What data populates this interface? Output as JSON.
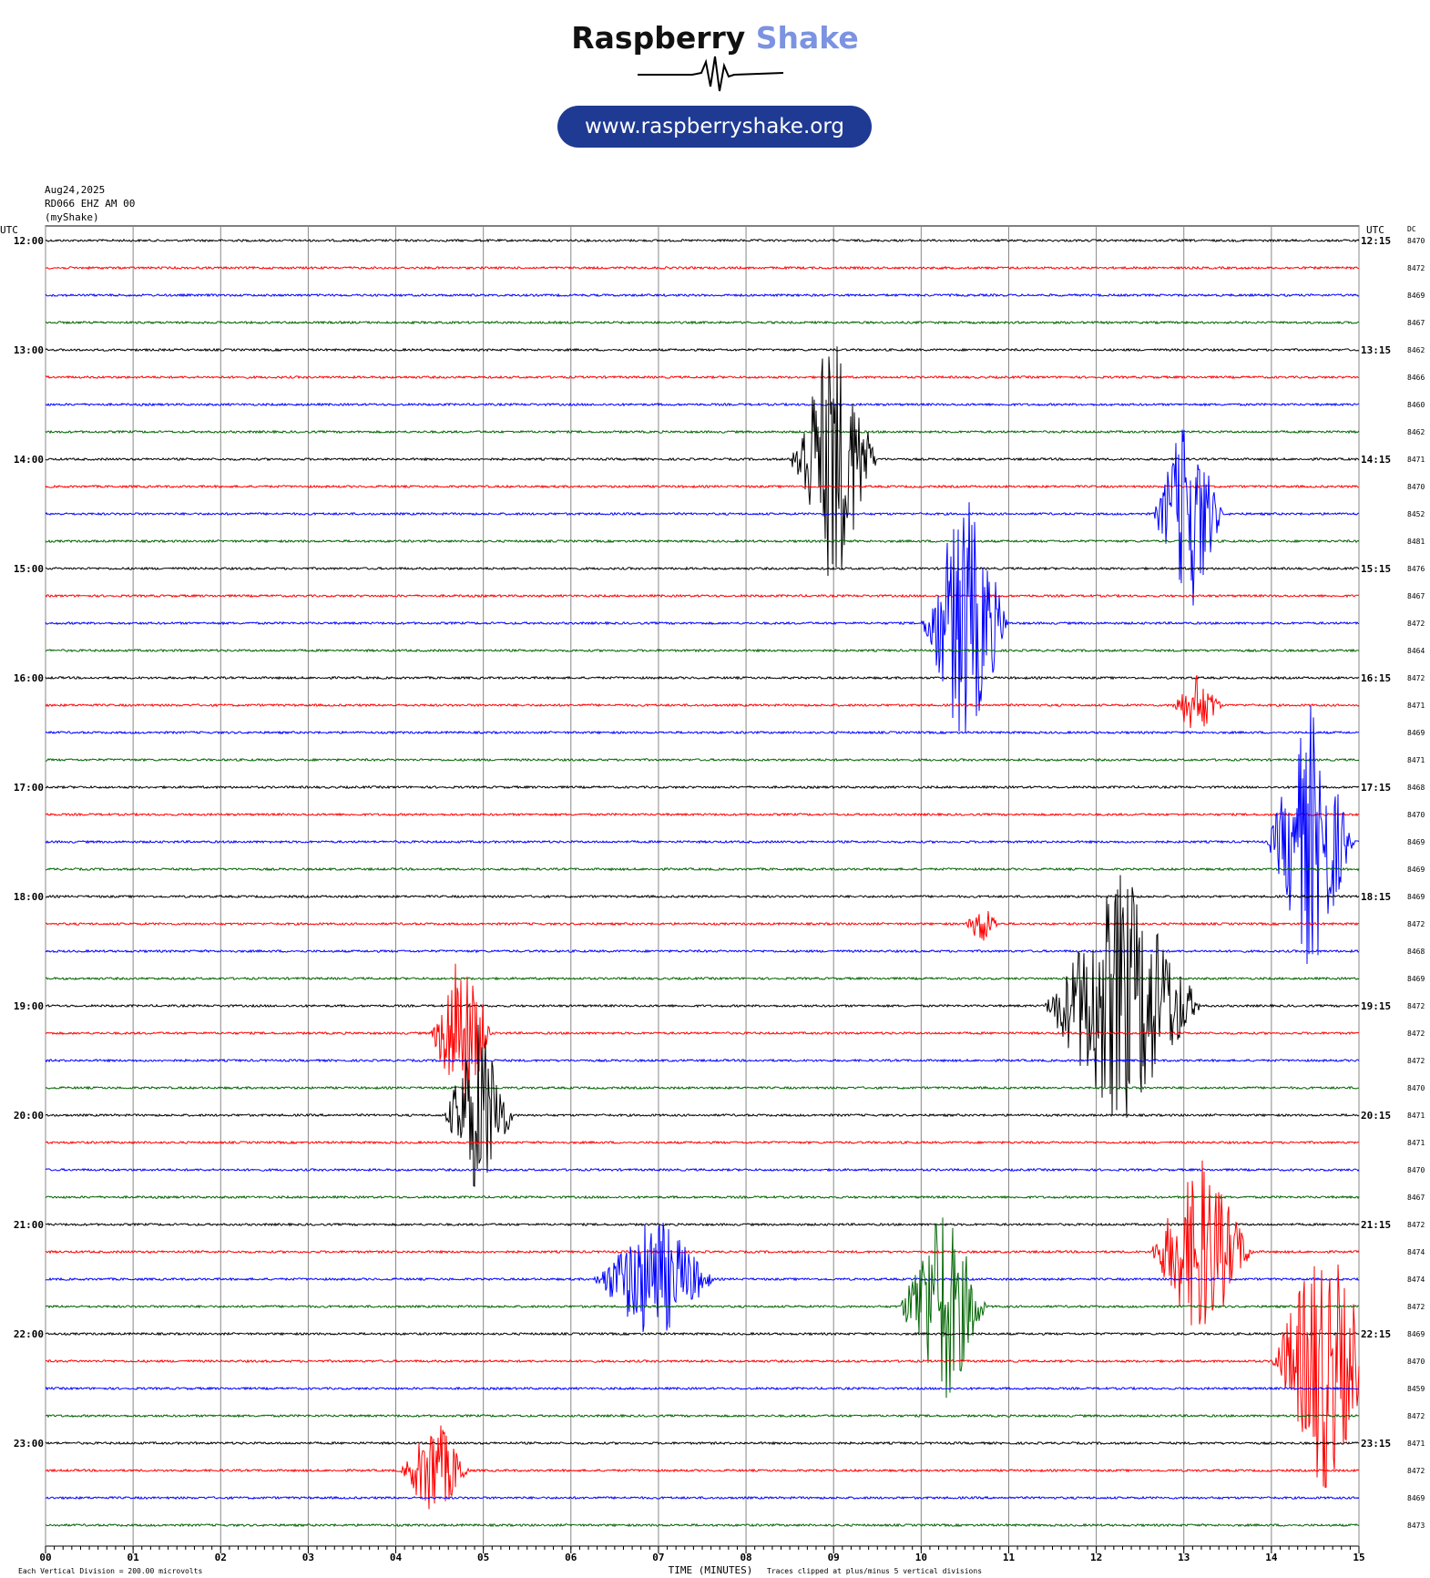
{
  "header": {
    "brand_part1": "Raspberry",
    "brand_part2": "Shake",
    "url": "www.raspberryshake.org",
    "date": "Aug24,2025",
    "station": "RD066 EHZ AM 00",
    "source": "(myShake)"
  },
  "footer": {
    "left_note": "Each Vertical Division =  200.00 microvolts",
    "xlabel": "TIME (MINUTES)",
    "right_note": "Traces clipped at plus/minus 5 vertical divisions"
  },
  "colors": {
    "black": "#000000",
    "red": "#ff0000",
    "blue": "#0000ff",
    "green": "#006400",
    "grid": "#888888"
  },
  "chart_data": {
    "type": "line",
    "title": "",
    "xlabel": "TIME (MINUTES)",
    "ylabel": "UTC",
    "right_axis_label": "UTC",
    "dc_label": "DC",
    "xlim": [
      0,
      15
    ],
    "x_ticks": [
      "00",
      "01",
      "02",
      "03",
      "04",
      "05",
      "06",
      "07",
      "08",
      "09",
      "10",
      "11",
      "12",
      "13",
      "14",
      "15"
    ],
    "left_hour_labels": [
      "12:00",
      "13:00",
      "14:00",
      "15:00",
      "16:00",
      "17:00",
      "18:00",
      "19:00",
      "20:00",
      "21:00",
      "22:00",
      "23:00"
    ],
    "right_hour_labels": [
      "12:15",
      "13:15",
      "14:15",
      "15:15",
      "16:15",
      "17:15",
      "18:15",
      "19:15",
      "20:15",
      "21:15",
      "22:15",
      "23:15"
    ],
    "trace_color_cycle": [
      "black",
      "red",
      "blue",
      "green"
    ],
    "dc_values": [
      "8470",
      "8472",
      "8469",
      "8467",
      "8462",
      "8466",
      "8460",
      "8462",
      "8471",
      "8470",
      "8452",
      "8481",
      "8476",
      "8467",
      "8472",
      "8464",
      "8472",
      "8471",
      "8469",
      "8471",
      "8468",
      "8470",
      "8469",
      "8469",
      "8469",
      "8472",
      "8468",
      "8469",
      "8472",
      "8472",
      "8472",
      "8470",
      "8471",
      "8471",
      "8470",
      "8467",
      "8472",
      "8474",
      "8474",
      "8472",
      "8469",
      "8470",
      "8459",
      "8472",
      "8471",
      "8472",
      "8469",
      "8473"
    ],
    "events": [
      {
        "trace": 8,
        "minute": 9.0,
        "amp": 5,
        "dur": 0.5
      },
      {
        "trace": 10,
        "minute": 13.05,
        "amp": 4,
        "dur": 0.4
      },
      {
        "trace": 14,
        "minute": 10.5,
        "amp": 5,
        "dur": 0.5
      },
      {
        "trace": 17,
        "minute": 13.15,
        "amp": 1.2,
        "dur": 0.3
      },
      {
        "trace": 22,
        "minute": 14.45,
        "amp": 5,
        "dur": 0.5
      },
      {
        "trace": 25,
        "minute": 10.7,
        "amp": 0.8,
        "dur": 0.2
      },
      {
        "trace": 28,
        "minute": 12.3,
        "amp": 5,
        "dur": 0.9
      },
      {
        "trace": 29,
        "minute": 4.75,
        "amp": 3.5,
        "dur": 0.35
      },
      {
        "trace": 32,
        "minute": 4.95,
        "amp": 3.5,
        "dur": 0.4
      },
      {
        "trace": 37,
        "minute": 13.2,
        "amp": 3.5,
        "dur": 0.6
      },
      {
        "trace": 38,
        "minute": 6.95,
        "amp": 2.5,
        "dur": 0.7
      },
      {
        "trace": 39,
        "minute": 10.25,
        "amp": 4,
        "dur": 0.5
      },
      {
        "trace": 41,
        "minute": 14.6,
        "amp": 5,
        "dur": 0.6
      },
      {
        "trace": 45,
        "minute": 4.45,
        "amp": 2,
        "dur": 0.4
      }
    ]
  }
}
